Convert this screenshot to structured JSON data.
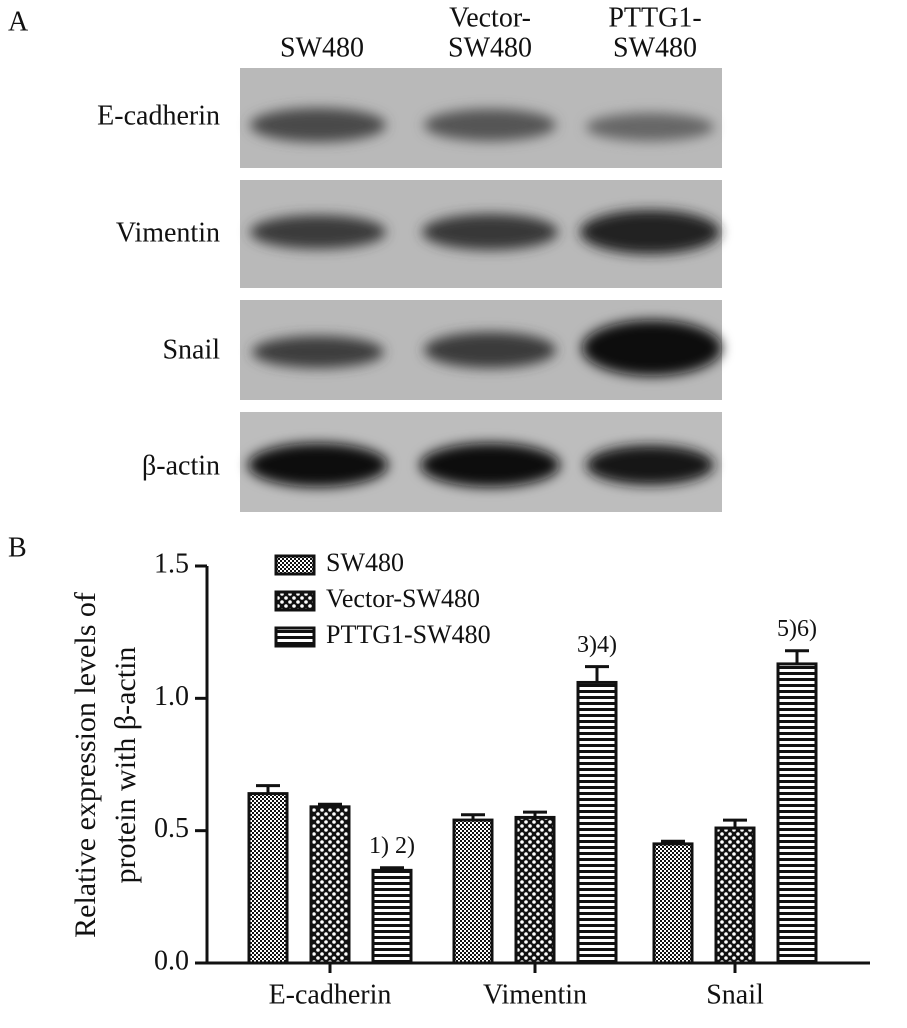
{
  "panel_a": {
    "label": "A",
    "columns": [
      [
        "SW480"
      ],
      [
        "Vector-",
        "SW480"
      ],
      [
        "PTTG1-",
        "SW480"
      ]
    ],
    "rows": [
      "E-cadherin",
      "Vimentin",
      "Snail",
      "β-actin"
    ]
  },
  "chart_data": {
    "type": "bar",
    "panel_label": "B",
    "ylabel": [
      "Relative expression levels of",
      "protein with β-actin"
    ],
    "categories": [
      "E-cadherin",
      "Vimentin",
      "Snail"
    ],
    "series": [
      {
        "name": "SW480",
        "color": "#111111",
        "pattern": "fine-checker",
        "values": [
          0.64,
          0.54,
          0.45
        ],
        "errors": [
          0.03,
          0.02,
          0.01
        ]
      },
      {
        "name": "Vector-SW480",
        "color": "#111111",
        "pattern": "checker",
        "values": [
          0.59,
          0.55,
          0.51
        ],
        "errors": [
          0.01,
          0.02,
          0.03
        ]
      },
      {
        "name": "PTTG1-SW480",
        "color": "#111111",
        "pattern": "stripes",
        "values": [
          0.35,
          1.06,
          1.13
        ],
        "errors": [
          0.01,
          0.06,
          0.05
        ],
        "annotations": [
          "1) 2)",
          "3)4)",
          "5)6)"
        ]
      }
    ],
    "ylim": [
      0,
      1.5
    ],
    "yticks": [
      {
        "value": 0,
        "label": "0.0"
      },
      0.5,
      {
        "value": 1,
        "label": "1.0"
      },
      1.5
    ],
    "legend": "top-left"
  }
}
